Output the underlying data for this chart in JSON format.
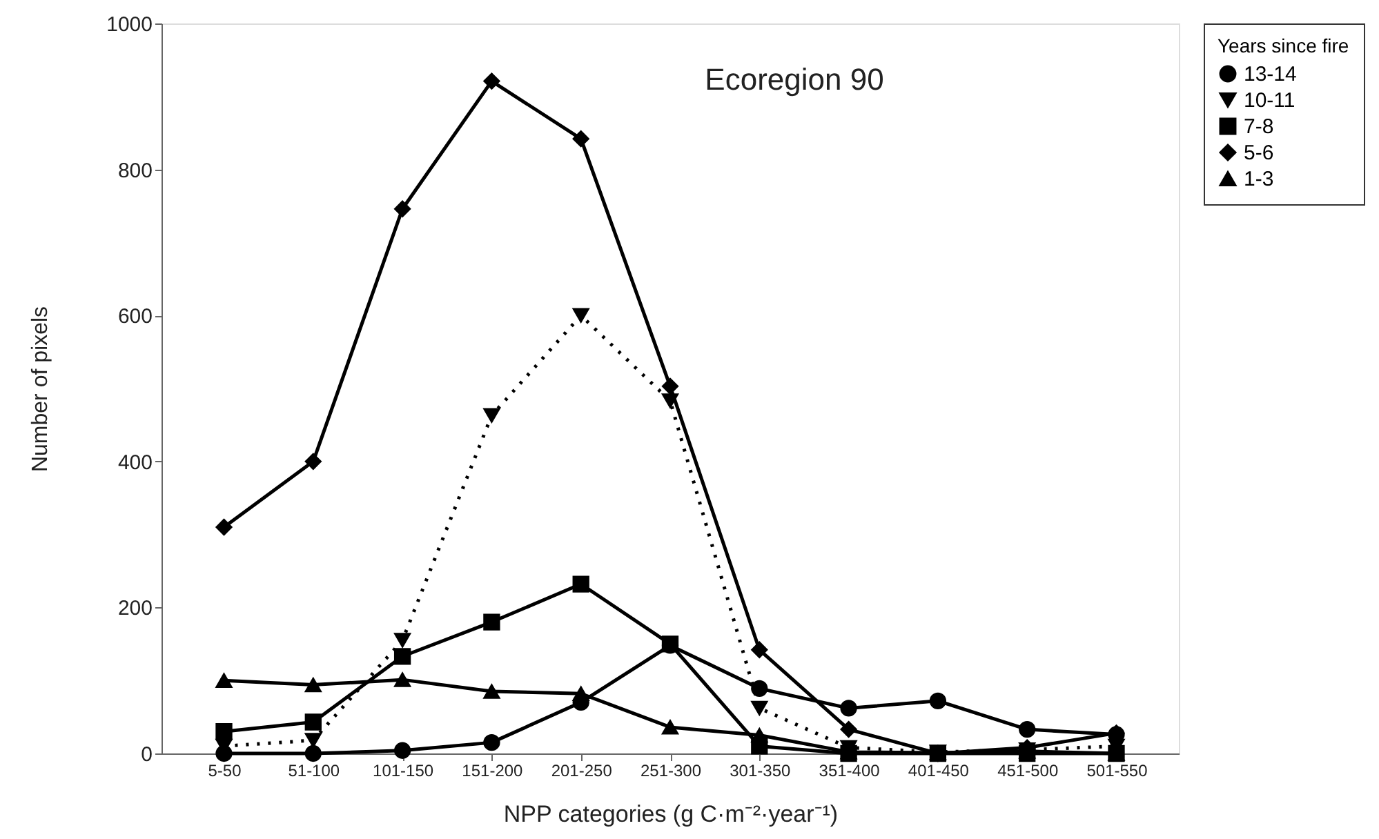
{
  "chart_data": {
    "type": "line",
    "title": "Ecoregion 90",
    "xlabel": "NPP categories (g C·m⁻²·year⁻¹)",
    "ylabel": "Number of pixels",
    "legend_title": "Years since fire",
    "legend": "right",
    "categories": [
      "5-50",
      "51-100",
      "101-150",
      "151-200",
      "201-250",
      "251-300",
      "301-350",
      "351-400",
      "401-450",
      "451-500",
      "501-550"
    ],
    "ylim": [
      0,
      1000
    ],
    "yticks": [
      0,
      200,
      400,
      600,
      800,
      1000
    ],
    "grid": false,
    "series": [
      {
        "name": "13-14",
        "color": "#000000",
        "marker": "circle",
        "line_style": "solid",
        "values": [
          0,
          0,
          4,
          15,
          70,
          148,
          89,
          62,
          72,
          33,
          26
        ]
      },
      {
        "name": "10-11",
        "color": "#000000",
        "marker": "triangle-down",
        "line_style": "dotted",
        "values": [
          10,
          18,
          155,
          463,
          600,
          483,
          62,
          8,
          2,
          5,
          10
        ]
      },
      {
        "name": "7-8",
        "color": "#000000",
        "marker": "square",
        "line_style": "solid",
        "values": [
          30,
          43,
          133,
          180,
          232,
          150,
          10,
          0,
          0,
          0,
          0
        ]
      },
      {
        "name": "5-6",
        "color": "#000000",
        "marker": "diamond",
        "line_style": "solid",
        "values": [
          310,
          400,
          746,
          921,
          842,
          503,
          142,
          33,
          0,
          8,
          28
        ]
      },
      {
        "name": "1-3",
        "color": "#000000",
        "marker": "triangle",
        "line_style": "solid",
        "values": [
          100,
          94,
          101,
          85,
          82,
          36,
          25,
          2,
          1,
          3,
          0
        ]
      }
    ]
  }
}
